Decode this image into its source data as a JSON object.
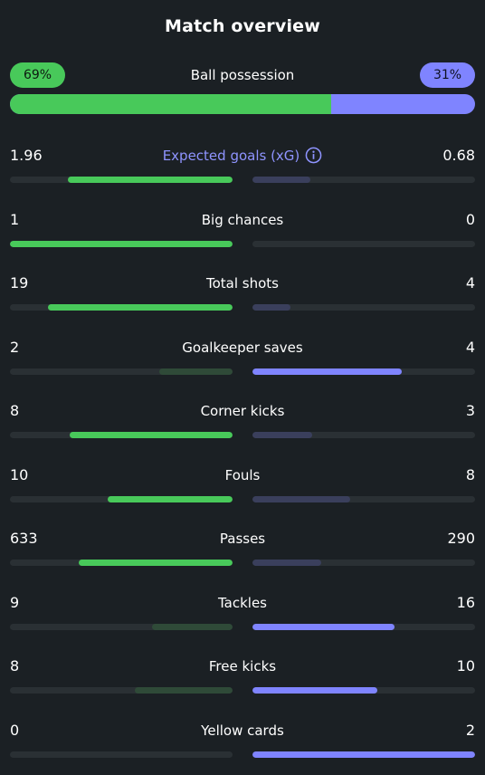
{
  "title": "Match overview",
  "possession": {
    "label": "Ball possession",
    "home_text": "69%",
    "away_text": "31%",
    "home_value": 69,
    "away_value": 31
  },
  "colors": {
    "home_strong": "#48c95a",
    "home_weak": "#2f4a38",
    "away_strong": "#7f84ff",
    "away_weak": "#3a3f5c",
    "track": "#2a3034",
    "accent_label": "#8f94ff"
  },
  "stats": [
    {
      "label": "Expected goals (xG)",
      "home": "1.96",
      "away": "0.68",
      "home_num": 1.96,
      "away_num": 0.68,
      "has_info": true,
      "home_fill": 0.74,
      "away_fill": 0.26
    },
    {
      "label": "Big chances",
      "home": "1",
      "away": "0",
      "home_num": 1,
      "away_num": 0,
      "has_info": false,
      "home_fill": 1.0,
      "away_fill": 0.0
    },
    {
      "label": "Total shots",
      "home": "19",
      "away": "4",
      "home_num": 19,
      "away_num": 4,
      "has_info": false,
      "home_fill": 0.83,
      "away_fill": 0.17
    },
    {
      "label": "Goalkeeper saves",
      "home": "2",
      "away": "4",
      "home_num": 2,
      "away_num": 4,
      "has_info": false,
      "home_fill": 0.33,
      "away_fill": 0.67
    },
    {
      "label": "Corner kicks",
      "home": "8",
      "away": "3",
      "home_num": 8,
      "away_num": 3,
      "has_info": false,
      "home_fill": 0.73,
      "away_fill": 0.27
    },
    {
      "label": "Fouls",
      "home": "10",
      "away": "8",
      "home_num": 10,
      "away_num": 8,
      "has_info": false,
      "home_fill": 0.56,
      "away_fill": 0.44
    },
    {
      "label": "Passes",
      "home": "633",
      "away": "290",
      "home_num": 633,
      "away_num": 290,
      "has_info": false,
      "home_fill": 0.69,
      "away_fill": 0.31
    },
    {
      "label": "Tackles",
      "home": "9",
      "away": "16",
      "home_num": 9,
      "away_num": 16,
      "has_info": false,
      "home_fill": 0.36,
      "away_fill": 0.64
    },
    {
      "label": "Free kicks",
      "home": "8",
      "away": "10",
      "home_num": 8,
      "away_num": 10,
      "has_info": false,
      "home_fill": 0.44,
      "away_fill": 0.56
    },
    {
      "label": "Yellow cards",
      "home": "0",
      "away": "2",
      "home_num": 0,
      "away_num": 2,
      "has_info": false,
      "home_fill": 0.0,
      "away_fill": 1.0
    }
  ],
  "icons": {
    "info": "info-icon"
  }
}
